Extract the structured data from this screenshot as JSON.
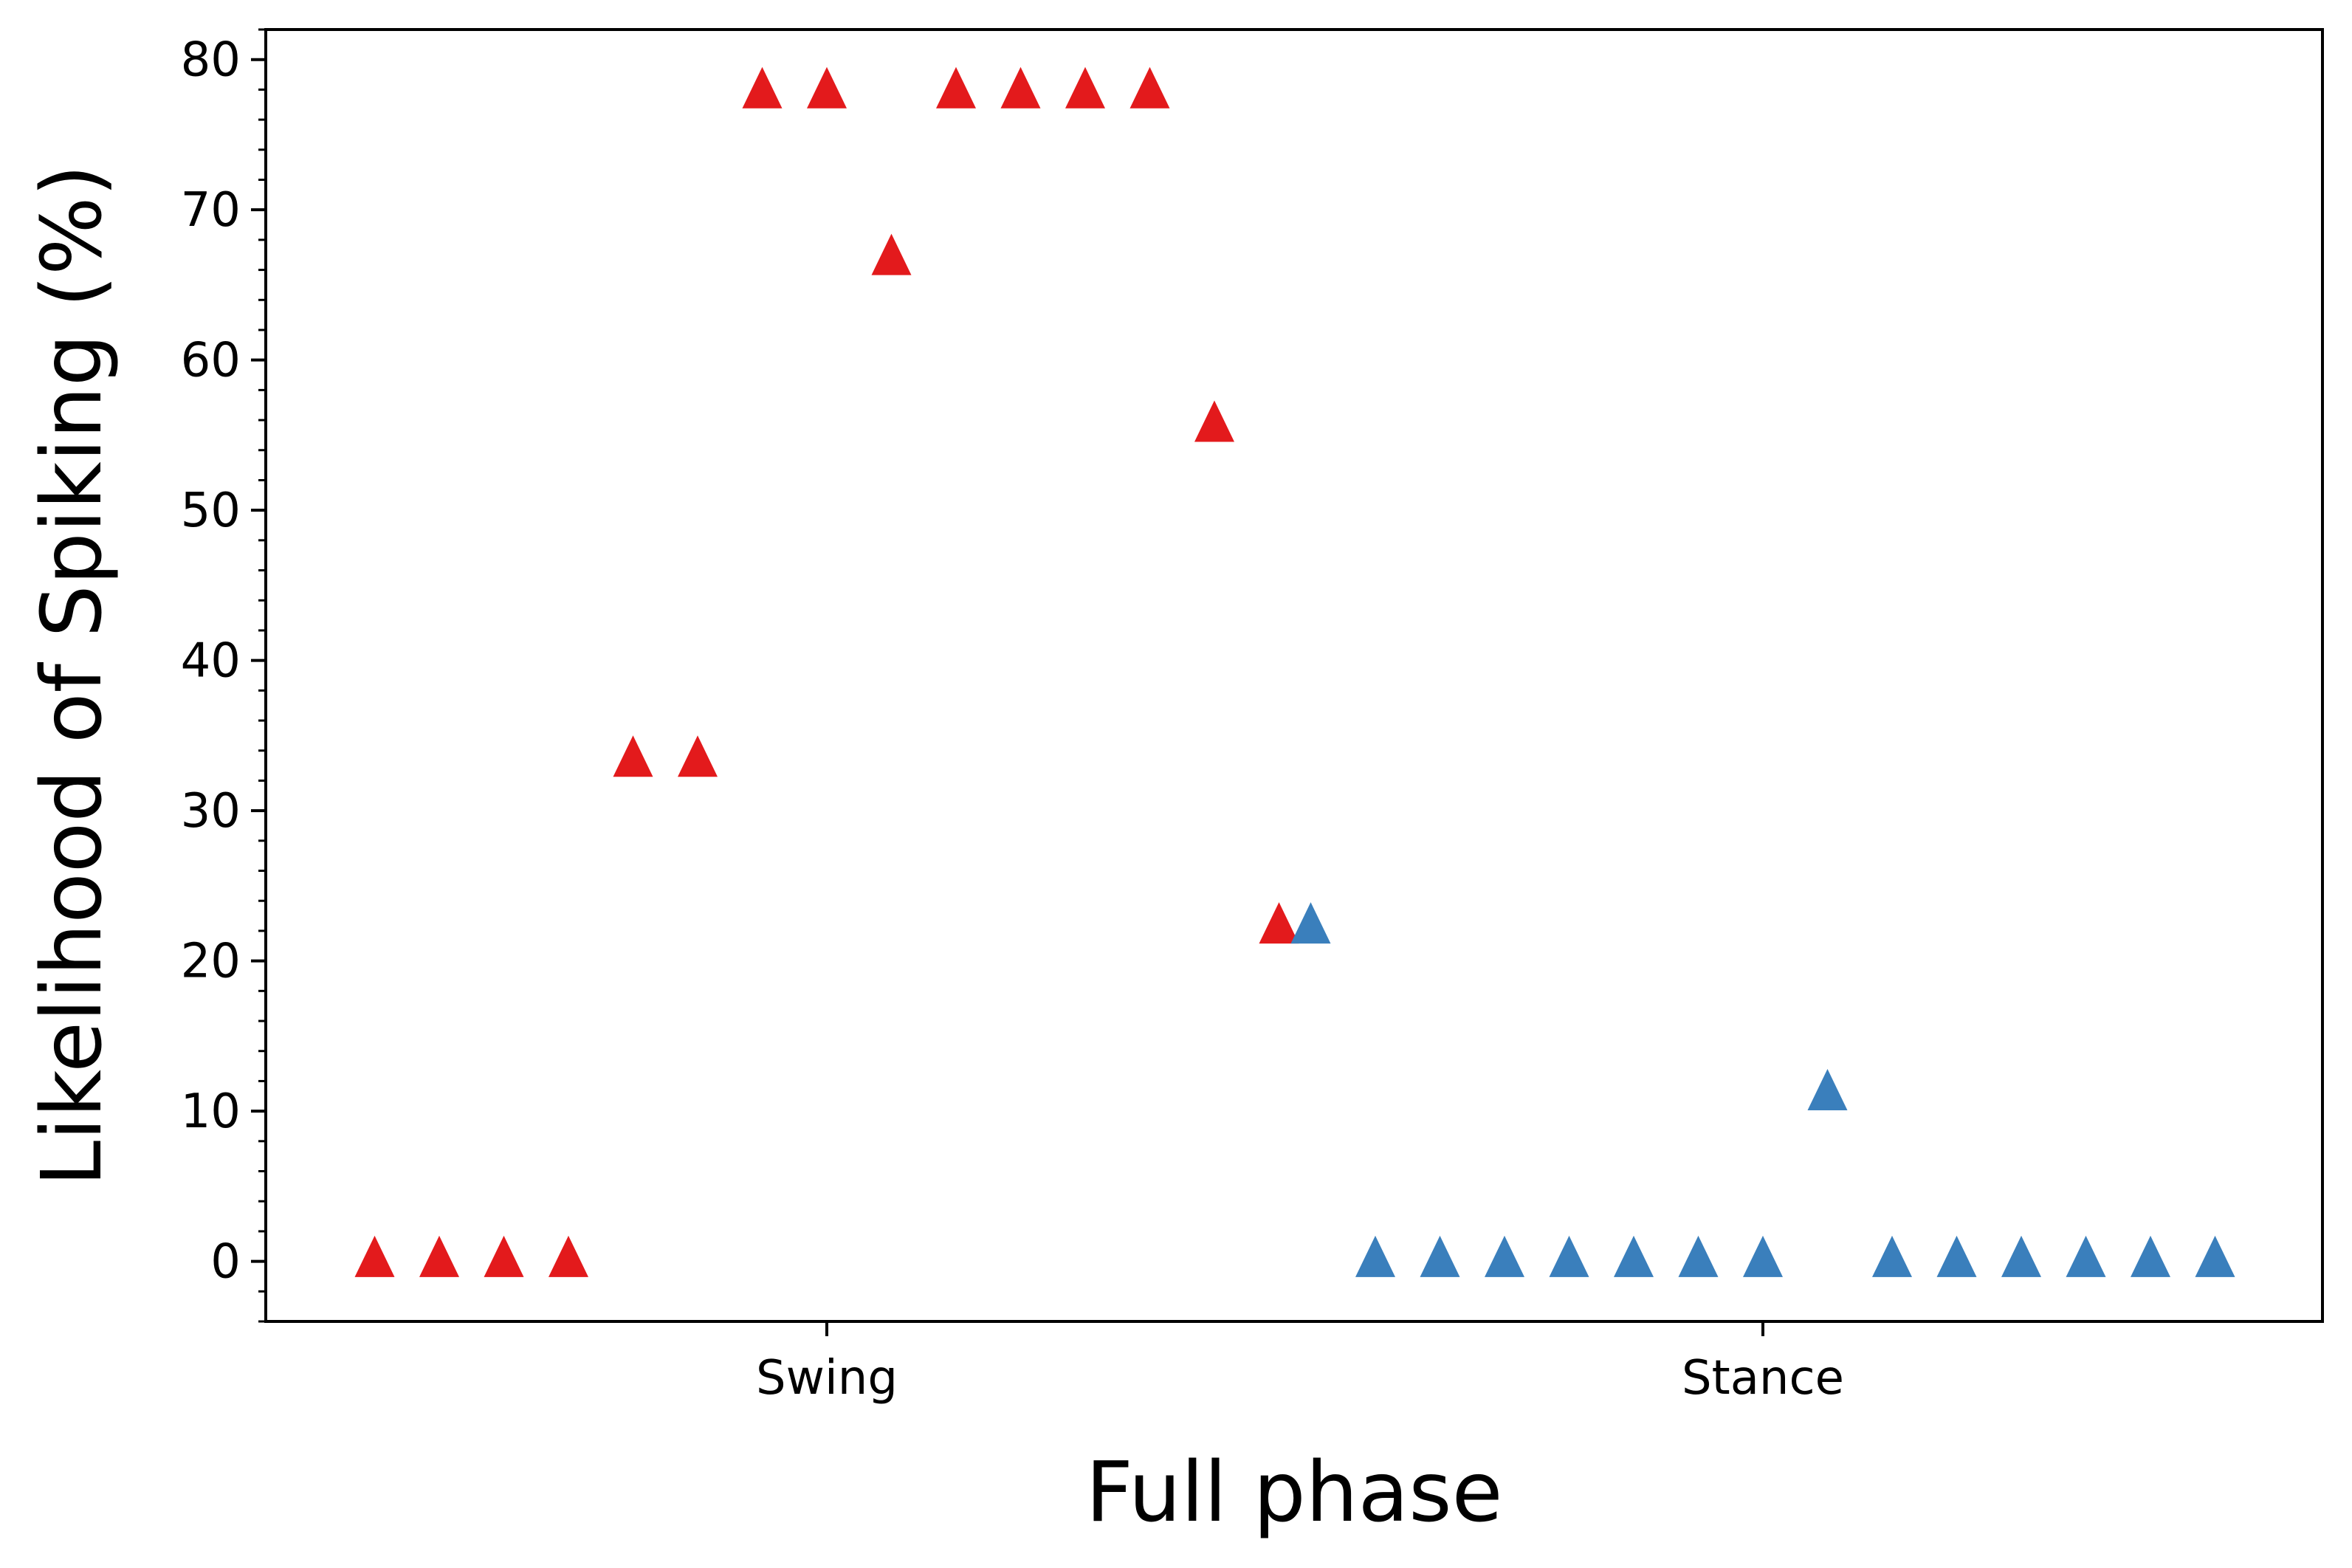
{
  "chart_data": {
    "type": "scatter",
    "title": "",
    "xlabel": "Full phase",
    "ylabel": "Likelihood of Spiking (%)",
    "ylim": [
      -4,
      82
    ],
    "yticks": [
      0,
      10,
      20,
      30,
      40,
      50,
      60,
      70,
      80
    ],
    "y_minor_step": 2,
    "grid": false,
    "legend": "none",
    "marker": "triangle-up",
    "categories": [
      "Swing",
      "Stance"
    ],
    "series": [
      {
        "category": "Swing",
        "color": "#e31a1c",
        "values": [
          0,
          0,
          0,
          0,
          33.3,
          33.3,
          77.8,
          77.8,
          66.7,
          77.8,
          77.8,
          77.8,
          77.8,
          55.6,
          22.2
        ]
      },
      {
        "category": "Stance",
        "color": "#3a7fbc",
        "values": [
          22.2,
          0,
          0,
          0,
          0,
          0,
          0,
          0,
          11.1,
          0,
          0,
          0,
          0,
          0,
          0
        ]
      }
    ]
  }
}
